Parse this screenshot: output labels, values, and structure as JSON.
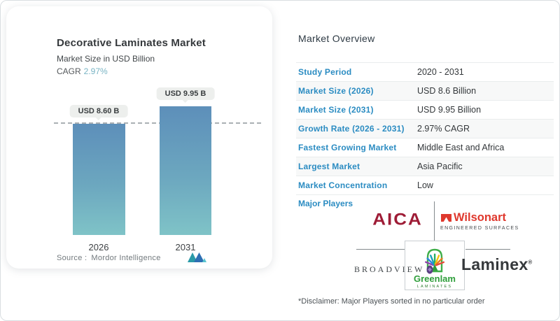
{
  "chart_card": {
    "title": "Decorative Laminates Market",
    "subtitle": "Market Size in USD Billion",
    "cagr_label": "CAGR",
    "cagr_value": "2.97%",
    "bars": [
      {
        "year": "2026",
        "label": "USD 8.60 B"
      },
      {
        "year": "2031",
        "label": "USD 9.95 B"
      }
    ],
    "source_label": "Source :",
    "source_value": "Mordor Intelligence"
  },
  "chart_data": {
    "type": "bar",
    "categories": [
      "2026",
      "2031"
    ],
    "values": [
      8.6,
      9.95
    ],
    "value_labels": [
      "USD 8.60 B",
      "USD 9.95 B"
    ],
    "title": "Decorative Laminates Market",
    "ylabel": "Market Size in USD Billion",
    "cagr": "2.97%",
    "ylim": [
      0,
      10.5
    ],
    "grid": false,
    "annotations": [
      "horizontal dashed reference line at level of 2026 bar (8.60)"
    ],
    "source": "Mordor Intelligence"
  },
  "overview": {
    "title": "Market Overview",
    "rows": [
      {
        "label": "Study Period",
        "value": "2020 - 2031"
      },
      {
        "label": "Market Size (2026)",
        "value": "USD 8.6 Billion"
      },
      {
        "label": "Market Size (2031)",
        "value": "USD 9.95 Billion"
      },
      {
        "label": "Growth Rate (2026 - 2031)",
        "value": "2.97% CAGR"
      },
      {
        "label": "Fastest Growing Market",
        "value": "Middle East and Africa"
      },
      {
        "label": "Largest Market",
        "value": "Asia Pacific"
      },
      {
        "label": "Market Concentration",
        "value": "Low"
      }
    ],
    "major_players_label": "Major Players",
    "disclaimer": "*Disclaimer: Major Players sorted in no particular order"
  },
  "players": {
    "aica": "AICA",
    "wilsonart": "Wilsonart",
    "wilsonart_sub": "ENGINEERED SURFACES",
    "broadview": "BROADVIEW",
    "greenlam": "Greenlam",
    "greenlam_sub": "LAMINATES",
    "laminex": "Laminex"
  },
  "colors": {
    "bar_gradient_top": "#5d8fba",
    "bar_gradient_bottom": "#7fc3c7",
    "table_label_blue": "#2b8cc2",
    "cagr_teal": "#79b4c4",
    "aica_red": "#9e1c36",
    "wilsonart_red": "#df382d",
    "greenlam_green": "#2e9e3a",
    "laminex_dark": "#35383b"
  }
}
